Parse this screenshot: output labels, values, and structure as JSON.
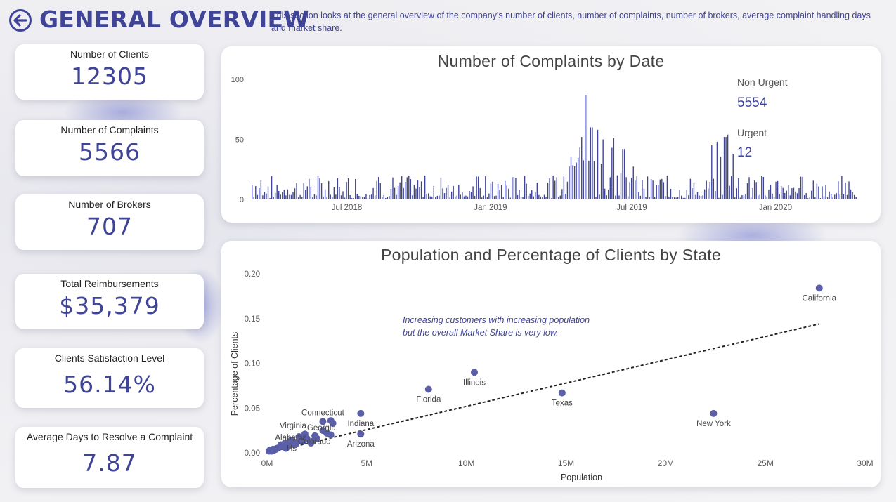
{
  "header": {
    "title": "GENERAL OVERVIEW",
    "description": "This section looks at the general overview of the company's number of clients, number of complaints, number of brokers, average complaint handling days and market share."
  },
  "kpis": [
    {
      "label": "Number of Clients",
      "value": "12305"
    },
    {
      "label": "Number of Complaints",
      "value": "5566"
    },
    {
      "label": "Number of Brokers",
      "value": "707"
    },
    {
      "label": "Total Reimbursements",
      "value": "$35,379"
    },
    {
      "label": "Clients Satisfaction Level",
      "value": "56.14%"
    },
    {
      "label": "Average Days to Resolve a Complaint",
      "value": "7.87"
    }
  ],
  "colors": {
    "accent": "#3f4497",
    "bar": "#3f4497",
    "dot": "#5a5fa8"
  },
  "chart_data": [
    {
      "type": "bar",
      "title": "Number of Complaints by Date",
      "ylim": [
        0,
        100
      ],
      "y_ticks": [
        "100",
        "50",
        "0"
      ],
      "x_ticks": [
        "Jul 2018",
        "Jan 2019",
        "Jul 2019",
        "Jan 2020"
      ],
      "date_range": [
        "2018-03-01",
        "2020-04-15"
      ],
      "bar_count": 340,
      "baseline_range": [
        2,
        20
      ],
      "peaks": [
        {
          "date": "2019-05-03",
          "value": 87
        },
        {
          "date": "2019-05-10",
          "value": 60
        },
        {
          "date": "2019-04-27",
          "value": 52
        },
        {
          "date": "2019-05-17",
          "value": 58
        },
        {
          "date": "2019-05-24",
          "value": 50
        },
        {
          "date": "2019-06-05",
          "value": 43
        },
        {
          "date": "2019-06-20",
          "value": 42
        },
        {
          "date": "2019-10-18",
          "value": 48
        },
        {
          "date": "2019-10-28",
          "value": 52
        },
        {
          "date": "2019-11-01",
          "value": 54
        },
        {
          "date": "2019-10-10",
          "value": 45
        }
      ],
      "legend": [
        {
          "label": "Non Urgent",
          "value": "5554"
        },
        {
          "label": "Urgent",
          "value": "12"
        }
      ]
    },
    {
      "type": "scatter",
      "title": "Population and Percentage of Clients by State",
      "xlabel": "Population",
      "ylabel": "Percentage of Clients",
      "xlim": [
        0,
        30000000
      ],
      "ylim": [
        0,
        0.2
      ],
      "x_ticks": [
        "0M",
        "5M",
        "10M",
        "15M",
        "20M",
        "25M",
        "30M"
      ],
      "y_ticks": [
        "0.20",
        "0.15",
        "0.10",
        "0.05",
        "0.00"
      ],
      "annotation": "Increasing customers with increasing population but the overall Market Share is very low.",
      "annotation_lines": [
        "Increasing customers with increasing population",
        "but the overall Market Share is very low."
      ],
      "trendline": {
        "x": [
          0,
          27700000
        ],
        "y": [
          0.0,
          0.144
        ]
      },
      "points": [
        {
          "x": 27700000,
          "y": 0.184,
          "label": "California"
        },
        {
          "x": 10400000,
          "y": 0.09,
          "label": "Illinois"
        },
        {
          "x": 8100000,
          "y": 0.071,
          "label": "Florida"
        },
        {
          "x": 14800000,
          "y": 0.067,
          "label": "Texas"
        },
        {
          "x": 22400000,
          "y": 0.044,
          "label": "New York"
        },
        {
          "x": 4700000,
          "y": 0.044,
          "label": "Indiana"
        },
        {
          "x": 4700000,
          "y": 0.021,
          "label": "Arizona"
        },
        {
          "x": 2800000,
          "y": 0.035,
          "label": "Connecticut"
        },
        {
          "x": 3200000,
          "y": 0.036,
          "label": ""
        },
        {
          "x": 3300000,
          "y": 0.033,
          "label": ""
        },
        {
          "x": 1900000,
          "y": 0.021,
          "label": "Virginia"
        },
        {
          "x": 2800000,
          "y": 0.025,
          "label": "Georgia"
        },
        {
          "x": 3000000,
          "y": 0.022,
          "label": ""
        },
        {
          "x": 3200000,
          "y": 0.02,
          "label": ""
        },
        {
          "x": 2400000,
          "y": 0.019,
          "label": ""
        },
        {
          "x": 2500000,
          "y": 0.016,
          "label": ""
        },
        {
          "x": 2300000,
          "y": 0.013,
          "label": "Colorado"
        },
        {
          "x": 2200000,
          "y": 0.011,
          "label": ""
        },
        {
          "x": 1600000,
          "y": 0.018,
          "label": ""
        },
        {
          "x": 1700000,
          "y": 0.016,
          "label": ""
        },
        {
          "x": 1500000,
          "y": 0.012,
          "label": ""
        },
        {
          "x": 1200000,
          "y": 0.014,
          "label": "Alabama"
        },
        {
          "x": 1300000,
          "y": 0.01,
          "label": ""
        },
        {
          "x": 1100000,
          "y": 0.008,
          "label": ""
        },
        {
          "x": 900000,
          "y": 0.011,
          "label": ""
        },
        {
          "x": 800000,
          "y": 0.007,
          "label": ""
        },
        {
          "x": 700000,
          "y": 0.009,
          "label": ""
        },
        {
          "x": 600000,
          "y": 0.006,
          "label": ""
        },
        {
          "x": 500000,
          "y": 0.005,
          "label": ""
        },
        {
          "x": 450000,
          "y": 0.004,
          "label": ""
        },
        {
          "x": 350000,
          "y": 0.003,
          "label": ""
        },
        {
          "x": 300000,
          "y": 0.004,
          "label": ""
        },
        {
          "x": 250000,
          "y": 0.002,
          "label": ""
        },
        {
          "x": 200000,
          "y": 0.002,
          "label": ""
        },
        {
          "x": 150000,
          "y": 0.003,
          "label": ""
        },
        {
          "x": 100000,
          "y": 0.002,
          "label": ""
        },
        {
          "x": 1800000,
          "y": 0.013,
          "label": ""
        },
        {
          "x": 2000000,
          "y": 0.016,
          "label": ""
        },
        {
          "x": 950000,
          "y": 0.005,
          "label": "Ills"
        },
        {
          "x": 1400000,
          "y": 0.009,
          "label": ""
        }
      ]
    }
  ]
}
